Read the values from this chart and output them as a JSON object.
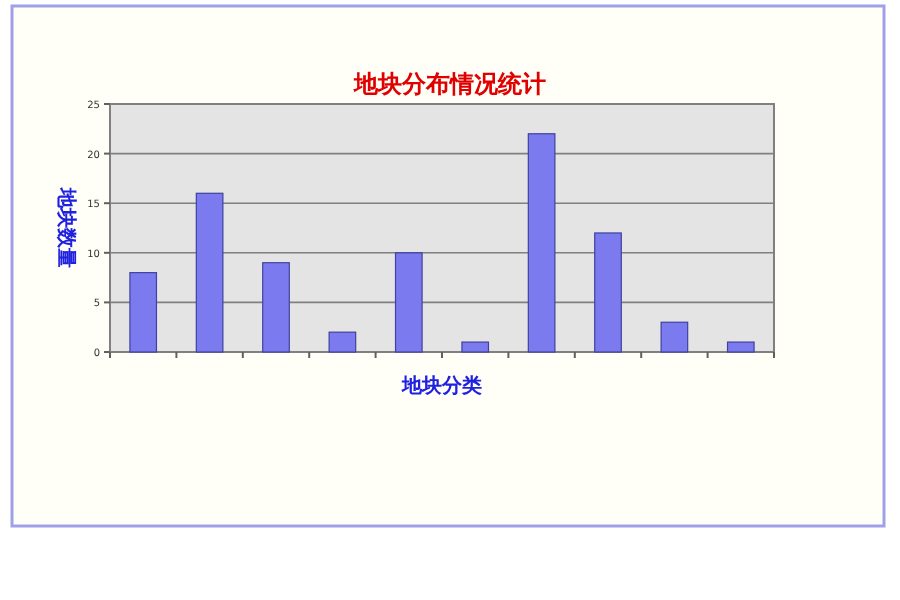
{
  "chart_data": {
    "type": "bar",
    "title": "地块分布情况统计",
    "xlabel": "地块分类",
    "ylabel": "地块数量",
    "categories": [
      null,
      null,
      null,
      null,
      null,
      null,
      null,
      null,
      null,
      null
    ],
    "values": [
      8,
      16,
      9,
      2,
      10,
      1,
      22,
      12,
      3,
      1
    ],
    "color": "#7b7bef",
    "ylim": [
      0,
      25
    ],
    "yticks": [
      0,
      5,
      10,
      15,
      20,
      25
    ],
    "grid": "y"
  }
}
